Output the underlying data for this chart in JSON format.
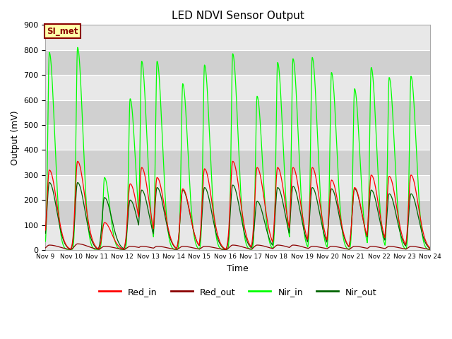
{
  "title": "LED NDVI Sensor Output",
  "xlabel": "Time",
  "ylabel": "Output (mV)",
  "ylim": [
    0,
    900
  ],
  "colors": {
    "Red_in": "#FF0000",
    "Red_out": "#8B0000",
    "Nir_in": "#00FF00",
    "Nir_out": "#006400"
  },
  "annotation_text": "SI_met",
  "annotation_color": "#8B0000",
  "annotation_bg": "#FFFFAA",
  "bg_light": "#E8E8E8",
  "bg_dark": "#D0D0D0",
  "grid_color": "#FFFFFF",
  "x_tick_labels": [
    "Nov 9",
    "Nov 10",
    "Nov 11",
    "Nov 12",
    "Nov 13",
    "Nov 14",
    "Nov 15",
    "Nov 16",
    "Nov 17",
    "Nov 18",
    "Nov 19",
    "Nov 20",
    "Nov 21",
    "Nov 22",
    "Nov 23",
    "Nov 24"
  ],
  "spike_days": [
    9.15,
    10.25,
    11.3,
    12.3,
    12.75,
    13.35,
    14.35,
    15.2,
    16.3,
    17.25,
    18.05,
    18.65,
    19.4,
    20.15,
    21.05,
    21.7,
    22.4,
    23.25
  ],
  "nir_in_peaks": [
    790,
    810,
    290,
    605,
    755,
    755,
    665,
    740,
    785,
    615,
    750,
    765,
    770,
    710,
    645,
    730,
    690,
    695
  ],
  "nir_out_peaks": [
    270,
    270,
    210,
    200,
    240,
    250,
    240,
    250,
    260,
    195,
    250,
    255,
    250,
    245,
    245,
    240,
    225,
    225
  ],
  "red_in_peaks": [
    320,
    355,
    110,
    265,
    330,
    290,
    245,
    325,
    355,
    330,
    330,
    330,
    330,
    280,
    250,
    300,
    295,
    300
  ],
  "red_out_peaks": [
    20,
    25,
    15,
    15,
    15,
    15,
    15,
    15,
    20,
    20,
    20,
    20,
    15,
    15,
    15,
    15,
    15,
    15
  ]
}
